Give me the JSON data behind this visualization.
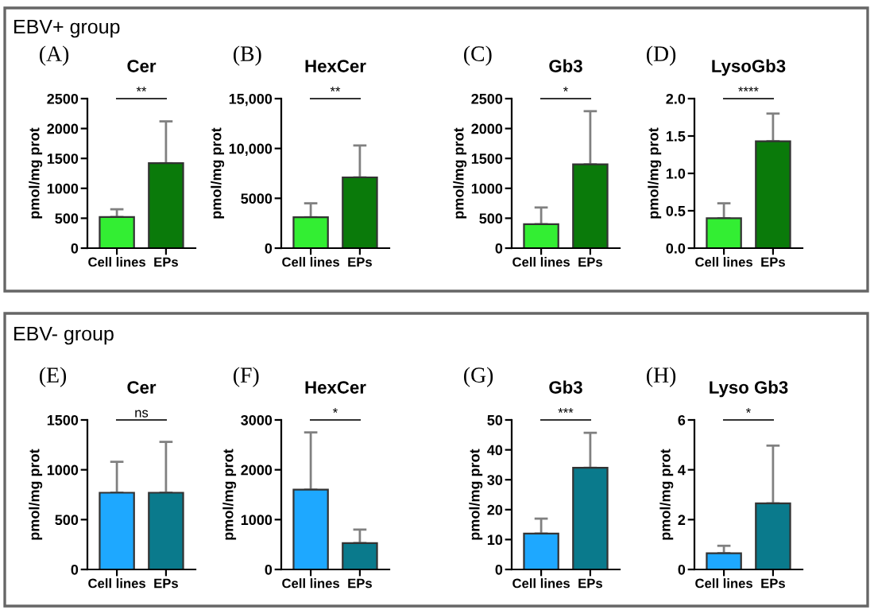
{
  "chart_data": [
    {
      "type": "bar",
      "title": "Cer",
      "ylabel": "pmol/mg prot",
      "categories": [
        "Cell lines",
        "EPs"
      ],
      "values": [
        520,
        1420
      ],
      "colors": [
        "#33ee33",
        "#0a7a0a"
      ],
      "errors": [
        [
          520,
          650
        ],
        [
          1420,
          2120
        ]
      ],
      "ylim": [
        0,
        2500
      ],
      "yticks": [
        0,
        500,
        1000,
        1500,
        2000,
        2500
      ],
      "annotations": [
        "EBV+ group",
        "(A)",
        "**"
      ]
    },
    {
      "type": "bar",
      "title": "HexCer",
      "ylabel": "pmol/mg prot",
      "categories": [
        "Cell lines",
        "EPs"
      ],
      "values": [
        3100,
        7100
      ],
      "colors": [
        "#33ee33",
        "#0a7a0a"
      ],
      "errors": [
        [
          3100,
          4500
        ],
        [
          7100,
          10300
        ]
      ],
      "ylim": [
        0,
        15000
      ],
      "yticks": [
        0,
        5000,
        {
          "value": 10000,
          "label": "10,000"
        },
        {
          "value": 15000,
          "label": "15,000"
        }
      ],
      "annotations": [
        "(B)",
        "**"
      ]
    },
    {
      "type": "bar",
      "title": "Gb3",
      "ylabel": "pmol/mg prot",
      "categories": [
        "Cell lines",
        "EPs"
      ],
      "values": [
        400,
        1400
      ],
      "colors": [
        "#33ee33",
        "#0a7a0a"
      ],
      "errors": [
        [
          400,
          680
        ],
        [
          1400,
          2290
        ]
      ],
      "ylim": [
        0,
        2500
      ],
      "yticks": [
        0,
        500,
        1000,
        1500,
        2000,
        2500
      ],
      "annotations": [
        "(C)",
        "*"
      ]
    },
    {
      "type": "bar",
      "title": "LysoGb3",
      "ylabel": "pmol/mg prot",
      "categories": [
        "Cell lines",
        "EPs"
      ],
      "values": [
        0.4,
        1.43
      ],
      "colors": [
        "#33ee33",
        "#0a7a0a"
      ],
      "errors": [
        [
          0.4,
          0.6
        ],
        [
          1.43,
          1.8
        ]
      ],
      "ylim": [
        0,
        2.0
      ],
      "yticks": [
        {
          "value": 0,
          "label": "0.0"
        },
        0.5,
        {
          "value": 1,
          "label": "1.0"
        },
        1.5,
        {
          "value": 2,
          "label": "2.0"
        }
      ],
      "annotations": [
        "(D)",
        "****"
      ]
    },
    {
      "type": "bar",
      "title": "Cer",
      "ylabel": "pmol/mg prot",
      "categories": [
        "Cell lines",
        "EPs"
      ],
      "values": [
        770,
        770
      ],
      "colors": [
        "#1ea8ff",
        "#0a7a8c"
      ],
      "errors": [
        [
          770,
          1080
        ],
        [
          770,
          1280
        ]
      ],
      "ylim": [
        0,
        1500
      ],
      "yticks": [
        0,
        500,
        1000,
        1500
      ],
      "annotations": [
        "EBV- group",
        "(E)",
        "ns"
      ]
    },
    {
      "type": "bar",
      "title": "HexCer",
      "ylabel": "pmol/mg prot",
      "categories": [
        "Cell lines",
        "EPs"
      ],
      "values": [
        1600,
        530
      ],
      "colors": [
        "#1ea8ff",
        "#0a7a8c"
      ],
      "errors": [
        [
          1600,
          2750
        ],
        [
          530,
          800
        ]
      ],
      "ylim": [
        0,
        3000
      ],
      "yticks": [
        0,
        1000,
        2000,
        3000
      ],
      "annotations": [
        "(F)",
        "*"
      ]
    },
    {
      "type": "bar",
      "title": "Gb3",
      "ylabel": "pmol/mg prot",
      "categories": [
        "Cell lines",
        "EPs"
      ],
      "values": [
        12,
        34
      ],
      "colors": [
        "#1ea8ff",
        "#0a7a8c"
      ],
      "errors": [
        [
          12,
          17
        ],
        [
          34,
          45.7
        ]
      ],
      "ylim": [
        0,
        50
      ],
      "yticks": [
        0,
        10,
        20,
        30,
        40,
        50
      ],
      "annotations": [
        "(G)",
        "***"
      ]
    },
    {
      "type": "bar",
      "title": "Lyso Gb3",
      "ylabel": "pmol/mg prot",
      "categories": [
        "Cell lines",
        "EPs"
      ],
      "values": [
        0.65,
        2.65
      ],
      "colors": [
        "#1ea8ff",
        "#0a7a8c"
      ],
      "errors": [
        [
          0.65,
          0.95
        ],
        [
          2.65,
          4.97
        ]
      ],
      "ylim": [
        0,
        6
      ],
      "yticks": [
        0,
        2,
        4,
        6
      ],
      "annotations": [
        "(H)",
        "*"
      ]
    }
  ]
}
